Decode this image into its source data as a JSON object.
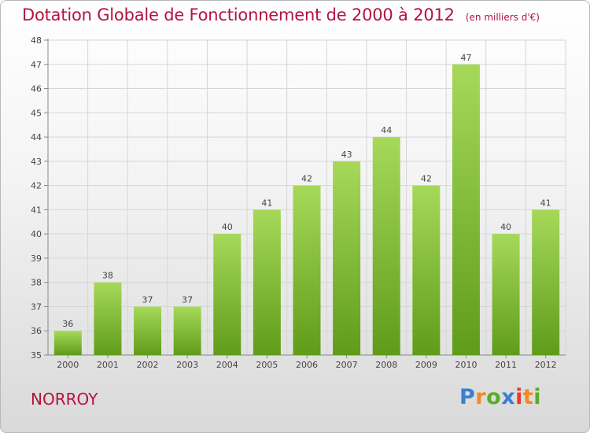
{
  "title": "Dotation Globale de Fonctionnement de 2000 à 2012",
  "unit_note": "(en milliers d'€)",
  "commune": "NORROY",
  "logo": {
    "letters": [
      "P",
      "r",
      "o",
      "x",
      "i",
      "t",
      "i"
    ],
    "colors": [
      "#3a7fd0",
      "#f08a24",
      "#5aab2b",
      "#3a7fd0",
      "#e23c2e",
      "#f08a24",
      "#5aab2b"
    ]
  },
  "colors": {
    "bar_light": "#a6d95a",
    "bar_dark": "#5f9c19",
    "title": "#b5123e",
    "grid": "#d6d6d6"
  },
  "chart_data": {
    "type": "bar",
    "categories": [
      "2000",
      "2001",
      "2002",
      "2003",
      "2004",
      "2005",
      "2006",
      "2007",
      "2008",
      "2009",
      "2010",
      "2011",
      "2012"
    ],
    "values": [
      36,
      38,
      37,
      37,
      40,
      41,
      42,
      43,
      44,
      42,
      47,
      40,
      41
    ],
    "ylim": [
      35,
      48
    ],
    "yticks": [
      35,
      36,
      37,
      38,
      39,
      40,
      41,
      42,
      43,
      44,
      45,
      46,
      47,
      48
    ],
    "grid": true,
    "data_labels": true
  }
}
